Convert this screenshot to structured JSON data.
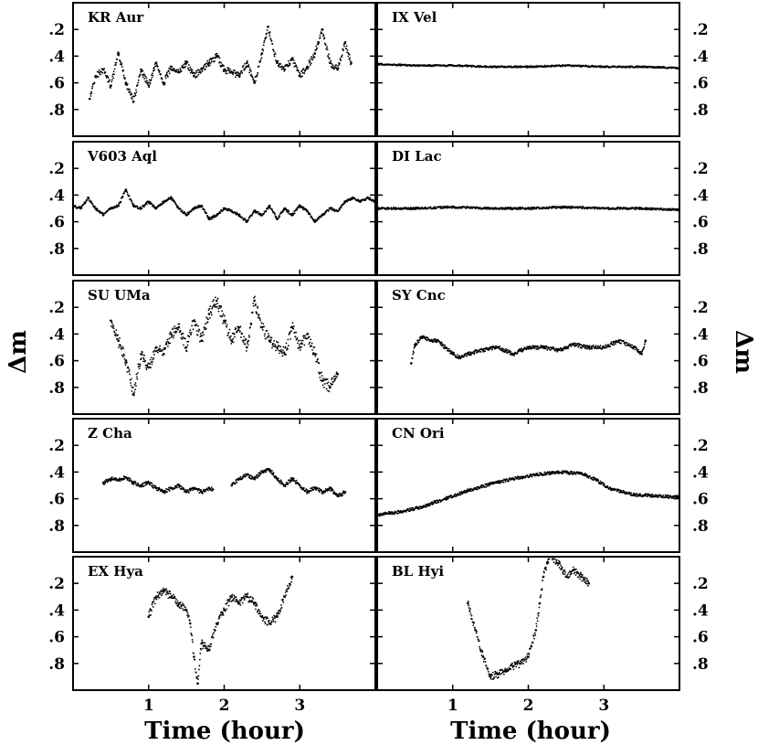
{
  "figure": {
    "ylabel_left": "Δm",
    "ylabel_right": "Δm",
    "xlabel_left": "Time (hour)",
    "xlabel_right": "Time (hour)"
  },
  "chart_data": [
    {
      "type": "scatter",
      "title": "KR Aur",
      "xlabel": "",
      "ylabel": "Δm",
      "xlim": [
        0,
        4
      ],
      "ylim": [
        1.0,
        0.0
      ],
      "yticks": [
        0.2,
        0.4,
        0.6,
        0.8
      ],
      "series": [
        {
          "x": [
            0.22,
            0.3,
            0.4,
            0.5,
            0.6,
            0.7,
            0.8,
            0.9,
            1.0,
            1.1,
            1.2,
            1.3,
            1.4,
            1.5,
            1.6,
            1.7,
            1.8,
            1.9,
            2.0,
            2.1,
            2.2,
            2.3,
            2.4,
            2.5,
            2.58,
            2.7,
            2.8,
            2.9,
            3.0,
            3.1,
            3.2,
            3.3,
            3.4,
            3.5,
            3.6,
            3.68
          ],
          "y": [
            0.72,
            0.55,
            0.5,
            0.62,
            0.38,
            0.6,
            0.74,
            0.5,
            0.62,
            0.45,
            0.6,
            0.48,
            0.52,
            0.45,
            0.55,
            0.5,
            0.45,
            0.4,
            0.5,
            0.52,
            0.55,
            0.45,
            0.6,
            0.38,
            0.18,
            0.45,
            0.5,
            0.42,
            0.55,
            0.48,
            0.38,
            0.2,
            0.45,
            0.5,
            0.3,
            0.45
          ]
        }
      ]
    },
    {
      "type": "scatter",
      "title": "IX Vel",
      "xlabel": "",
      "ylabel": "Δm",
      "xlim": [
        0,
        4
      ],
      "ylim": [
        1.0,
        0.0
      ],
      "yticks": [
        0.2,
        0.4,
        0.6,
        0.8
      ],
      "series": [
        {
          "x": [
            0.0,
            0.5,
            1.0,
            1.5,
            2.0,
            2.5,
            3.0,
            3.5,
            4.0
          ],
          "y": [
            0.46,
            0.47,
            0.47,
            0.48,
            0.48,
            0.47,
            0.48,
            0.48,
            0.49
          ]
        }
      ]
    },
    {
      "type": "scatter",
      "title": "V603 Aql",
      "xlabel": "",
      "ylabel": "Δm",
      "xlim": [
        0,
        4
      ],
      "ylim": [
        1.0,
        0.0
      ],
      "yticks": [
        0.2,
        0.4,
        0.6,
        0.8
      ],
      "series": [
        {
          "x": [
            0.0,
            0.1,
            0.2,
            0.3,
            0.4,
            0.5,
            0.6,
            0.7,
            0.8,
            0.9,
            1.0,
            1.1,
            1.2,
            1.3,
            1.4,
            1.5,
            1.6,
            1.7,
            1.8,
            1.9,
            2.0,
            2.1,
            2.2,
            2.3,
            2.4,
            2.5,
            2.6,
            2.7,
            2.8,
            2.9,
            3.0,
            3.1,
            3.2,
            3.3,
            3.4,
            3.5,
            3.6,
            3.7,
            3.8,
            3.9,
            4.0
          ],
          "y": [
            0.48,
            0.5,
            0.42,
            0.5,
            0.55,
            0.5,
            0.48,
            0.36,
            0.48,
            0.5,
            0.45,
            0.5,
            0.45,
            0.42,
            0.5,
            0.55,
            0.5,
            0.48,
            0.58,
            0.55,
            0.5,
            0.52,
            0.55,
            0.6,
            0.52,
            0.55,
            0.48,
            0.58,
            0.5,
            0.55,
            0.48,
            0.52,
            0.6,
            0.55,
            0.5,
            0.52,
            0.45,
            0.42,
            0.45,
            0.42,
            0.45
          ]
        }
      ]
    },
    {
      "type": "scatter",
      "title": "DI Lac",
      "xlabel": "",
      "ylabel": "Δm",
      "xlim": [
        0,
        4
      ],
      "ylim": [
        1.0,
        0.0
      ],
      "yticks": [
        0.2,
        0.4,
        0.6,
        0.8
      ],
      "series": [
        {
          "x": [
            0.0,
            0.5,
            1.0,
            1.5,
            2.0,
            2.5,
            3.0,
            3.5,
            4.0
          ],
          "y": [
            0.5,
            0.5,
            0.49,
            0.5,
            0.5,
            0.49,
            0.5,
            0.5,
            0.51
          ]
        }
      ]
    },
    {
      "type": "scatter",
      "title": "SU UMa",
      "xlabel": "",
      "ylabel": "Δm",
      "xlim": [
        0,
        4
      ],
      "ylim": [
        1.0,
        0.0
      ],
      "yticks": [
        0.2,
        0.4,
        0.6,
        0.8
      ],
      "series": [
        {
          "x": [
            0.5,
            0.6,
            0.7,
            0.8,
            0.9,
            1.0,
            1.1,
            1.2,
            1.3,
            1.4,
            1.5,
            1.6,
            1.7,
            1.8,
            1.9,
            2.0,
            2.1,
            2.2,
            2.3,
            2.4,
            2.5,
            2.6,
            2.7,
            2.8,
            2.9,
            3.0,
            3.1,
            3.2,
            3.3,
            3.4,
            3.5
          ],
          "y": [
            0.3,
            0.45,
            0.6,
            0.85,
            0.55,
            0.65,
            0.5,
            0.55,
            0.4,
            0.35,
            0.5,
            0.3,
            0.45,
            0.25,
            0.15,
            0.3,
            0.45,
            0.35,
            0.5,
            0.15,
            0.35,
            0.45,
            0.5,
            0.55,
            0.35,
            0.5,
            0.4,
            0.55,
            0.75,
            0.8,
            0.7
          ]
        }
      ]
    },
    {
      "type": "scatter",
      "title": "SY Cnc",
      "xlabel": "",
      "ylabel": "Δm",
      "xlim": [
        0,
        4
      ],
      "ylim": [
        1.0,
        0.0
      ],
      "yticks": [
        0.2,
        0.4,
        0.6,
        0.8
      ],
      "series": [
        {
          "x": [
            0.45,
            0.5,
            0.6,
            0.7,
            0.8,
            0.9,
            1.0,
            1.1,
            1.2,
            1.4,
            1.6,
            1.8,
            2.0,
            2.2,
            2.4,
            2.6,
            2.8,
            3.0,
            3.2,
            3.4,
            3.5,
            3.55
          ],
          "y": [
            0.62,
            0.48,
            0.42,
            0.45,
            0.45,
            0.5,
            0.55,
            0.58,
            0.55,
            0.52,
            0.5,
            0.55,
            0.5,
            0.5,
            0.52,
            0.48,
            0.5,
            0.5,
            0.45,
            0.5,
            0.55,
            0.45
          ]
        }
      ]
    },
    {
      "type": "scatter",
      "title": "Z Cha",
      "xlabel": "",
      "ylabel": "Δm",
      "xlim": [
        0,
        4
      ],
      "ylim": [
        1.0,
        0.0
      ],
      "yticks": [
        0.2,
        0.4,
        0.6,
        0.8
      ],
      "series": [
        {
          "x": [
            0.4,
            0.5,
            0.6,
            0.7,
            0.8,
            0.9,
            1.0,
            1.1,
            1.2,
            1.3,
            1.4,
            1.5,
            1.6,
            1.7,
            1.8,
            1.85,
            null,
            2.1,
            2.2,
            2.3,
            2.4,
            2.5,
            2.6,
            2.7,
            2.8,
            2.9,
            3.0,
            3.1,
            3.2,
            3.3,
            3.4,
            3.5,
            3.6
          ],
          "y": [
            0.48,
            0.45,
            0.46,
            0.44,
            0.48,
            0.5,
            0.48,
            0.52,
            0.55,
            0.52,
            0.5,
            0.55,
            0.52,
            0.55,
            0.52,
            0.53,
            null,
            0.5,
            0.45,
            0.42,
            0.45,
            0.4,
            0.38,
            0.45,
            0.5,
            0.45,
            0.5,
            0.55,
            0.52,
            0.55,
            0.52,
            0.58,
            0.55
          ]
        }
      ]
    },
    {
      "type": "scatter",
      "title": "CN Ori",
      "xlabel": "",
      "ylabel": "Δm",
      "xlim": [
        0,
        4
      ],
      "ylim": [
        1.0,
        0.0
      ],
      "yticks": [
        0.2,
        0.4,
        0.6,
        0.8
      ],
      "series": [
        {
          "x": [
            0.0,
            0.3,
            0.6,
            0.9,
            1.2,
            1.5,
            1.8,
            2.1,
            2.4,
            2.7,
            2.9,
            3.1,
            3.4,
            3.7,
            4.0
          ],
          "y": [
            0.72,
            0.7,
            0.66,
            0.6,
            0.54,
            0.49,
            0.45,
            0.42,
            0.4,
            0.41,
            0.46,
            0.53,
            0.57,
            0.58,
            0.59
          ]
        }
      ]
    },
    {
      "type": "scatter",
      "title": "EX Hya",
      "xlabel": "Time (hour)",
      "ylabel": "Δm",
      "xlim": [
        0,
        4
      ],
      "ylim": [
        1.0,
        0.0
      ],
      "yticks": [
        0.2,
        0.4,
        0.6,
        0.8
      ],
      "xticks": [
        1,
        2,
        3
      ],
      "series": [
        {
          "x": [
            1.0,
            1.1,
            1.2,
            1.3,
            1.4,
            1.5,
            1.55,
            1.6,
            1.65,
            1.7,
            1.8,
            1.9,
            2.0,
            2.1,
            2.2,
            2.3,
            2.4,
            2.5,
            2.6,
            2.7,
            2.8,
            2.9
          ],
          "y": [
            0.45,
            0.3,
            0.25,
            0.3,
            0.35,
            0.4,
            0.5,
            0.75,
            0.95,
            0.65,
            0.7,
            0.5,
            0.4,
            0.3,
            0.35,
            0.3,
            0.35,
            0.45,
            0.5,
            0.45,
            0.3,
            0.15
          ]
        }
      ]
    },
    {
      "type": "scatter",
      "title": "BL Hyi",
      "xlabel": "Time (hour)",
      "ylabel": "Δm",
      "xlim": [
        0,
        4
      ],
      "ylim": [
        1.0,
        0.0
      ],
      "yticks": [
        0.2,
        0.4,
        0.6,
        0.8
      ],
      "xticks": [
        1,
        2,
        3
      ],
      "series": [
        {
          "x": [
            1.2,
            1.3,
            1.4,
            1.5,
            1.6,
            1.7,
            1.8,
            1.9,
            2.0,
            2.1,
            2.15,
            2.2,
            2.25,
            2.3,
            2.4,
            2.5,
            2.6,
            2.7,
            2.8
          ],
          "y": [
            0.35,
            0.55,
            0.75,
            0.9,
            0.88,
            0.85,
            0.82,
            0.8,
            0.75,
            0.55,
            0.35,
            0.15,
            0.05,
            0.0,
            0.05,
            0.15,
            0.1,
            0.15,
            0.2
          ]
        }
      ]
    }
  ]
}
